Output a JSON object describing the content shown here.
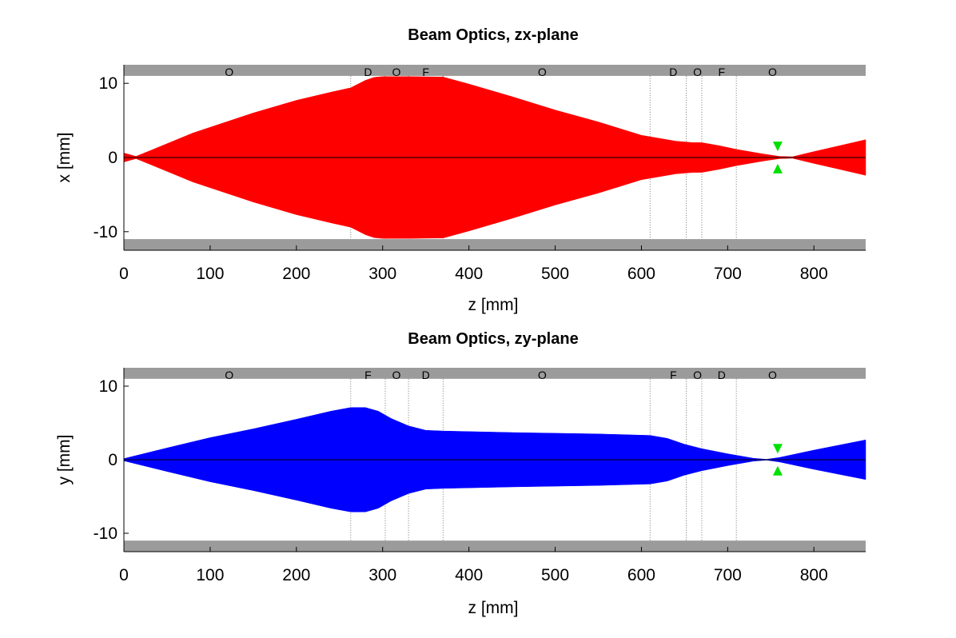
{
  "chart_data": [
    {
      "type": "area",
      "title": "Beam Optics, zx-plane",
      "xlabel": "z [mm]",
      "ylabel": "x [mm]",
      "xlim": [
        0,
        860
      ],
      "ylim": [
        -12.5,
        12.5
      ],
      "xticks": [
        0,
        100,
        200,
        300,
        400,
        500,
        600,
        700,
        800
      ],
      "yticks": [
        10,
        0,
        -10
      ],
      "ytick_labels": [
        "10",
        "0",
        "-10"
      ],
      "aperture_mm": 11,
      "element_boundaries": [
        263,
        303,
        330,
        370,
        610,
        652,
        670,
        710
      ],
      "elements": [
        {
          "label": "O",
          "z": 122
        },
        {
          "label": "D",
          "z": 283
        },
        {
          "label": "O",
          "z": 316
        },
        {
          "label": "F",
          "z": 350
        },
        {
          "label": "O",
          "z": 485
        },
        {
          "label": "D",
          "z": 637
        },
        {
          "label": "O",
          "z": 665
        },
        {
          "label": "F",
          "z": 693
        },
        {
          "label": "O",
          "z": 752
        }
      ],
      "envelope_color": "#ff0000",
      "envelope": {
        "z": [
          0,
          14,
          30,
          80,
          150,
          200,
          240,
          263,
          280,
          290,
          300,
          330,
          370,
          400,
          450,
          500,
          550,
          600,
          620,
          640,
          660,
          670,
          690,
          710,
          740,
          760,
          775,
          800,
          830,
          860
        ],
        "upper": [
          0.6,
          0.15,
          0.9,
          3.3,
          6.0,
          7.7,
          8.8,
          9.4,
          10.4,
          10.8,
          10.9,
          10.9,
          10.85,
          9.9,
          8.2,
          6.4,
          4.8,
          3.0,
          2.6,
          2.2,
          2.0,
          2.0,
          1.6,
          1.1,
          0.5,
          0.15,
          0.1,
          0.8,
          1.6,
          2.4
        ],
        "lower": [
          -0.6,
          -0.15,
          -0.9,
          -3.3,
          -6.0,
          -7.7,
          -8.8,
          -9.4,
          -10.4,
          -10.8,
          -10.9,
          -10.9,
          -10.85,
          -9.9,
          -8.2,
          -6.4,
          -4.8,
          -3.0,
          -2.6,
          -2.2,
          -2.0,
          -2.0,
          -1.6,
          -1.1,
          -0.5,
          -0.15,
          -0.1,
          -0.8,
          -1.6,
          -2.4
        ]
      },
      "marker": {
        "z": 758,
        "upper": 1.5,
        "lower": -1.5,
        "color": "#00e000"
      }
    },
    {
      "type": "area",
      "title": "Beam Optics, zy-plane",
      "xlabel": "z [mm]",
      "ylabel": "y [mm]",
      "xlim": [
        0,
        860
      ],
      "ylim": [
        -12.5,
        12.5
      ],
      "xticks": [
        0,
        100,
        200,
        300,
        400,
        500,
        600,
        700,
        800
      ],
      "yticks": [
        10,
        0,
        -10
      ],
      "ytick_labels": [
        "10",
        "0",
        "-10"
      ],
      "aperture_mm": 11,
      "element_boundaries": [
        263,
        303,
        330,
        370,
        610,
        652,
        670,
        710
      ],
      "elements": [
        {
          "label": "O",
          "z": 122
        },
        {
          "label": "F",
          "z": 283
        },
        {
          "label": "O",
          "z": 316
        },
        {
          "label": "D",
          "z": 350
        },
        {
          "label": "O",
          "z": 485
        },
        {
          "label": "F",
          "z": 637
        },
        {
          "label": "O",
          "z": 665
        },
        {
          "label": "D",
          "z": 693
        },
        {
          "label": "O",
          "z": 752
        }
      ],
      "envelope_color": "#0000ff",
      "envelope": {
        "z": [
          0,
          50,
          100,
          150,
          200,
          240,
          263,
          280,
          295,
          310,
          330,
          350,
          370,
          450,
          550,
          610,
          630,
          650,
          670,
          700,
          730,
          745,
          760,
          800,
          830,
          860
        ],
        "upper": [
          0.15,
          1.6,
          3.0,
          4.2,
          5.5,
          6.6,
          7.1,
          7.1,
          6.6,
          5.6,
          4.6,
          4.0,
          3.9,
          3.7,
          3.5,
          3.3,
          2.9,
          2.1,
          1.5,
          0.8,
          0.2,
          0.05,
          0.3,
          1.3,
          2.0,
          2.7
        ],
        "lower": [
          -0.15,
          -1.6,
          -3.0,
          -4.2,
          -5.5,
          -6.6,
          -7.1,
          -7.1,
          -6.6,
          -5.6,
          -4.6,
          -4.0,
          -3.9,
          -3.7,
          -3.5,
          -3.3,
          -2.9,
          -2.1,
          -1.5,
          -0.8,
          -0.2,
          -0.05,
          -0.3,
          -1.3,
          -2.0,
          -2.7
        ]
      },
      "marker": {
        "z": 758,
        "upper": 1.5,
        "lower": -1.5,
        "color": "#00e000"
      }
    }
  ]
}
